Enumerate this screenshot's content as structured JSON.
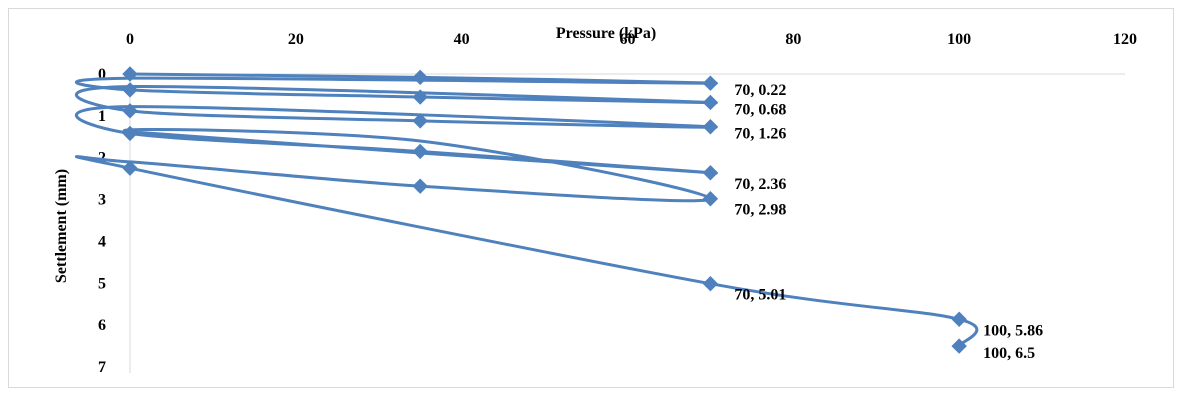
{
  "chart_data": {
    "type": "scatter",
    "xlabel": "Pressure (kPa)",
    "ylabel": "Settlement (mm)",
    "xlim": [
      0,
      120
    ],
    "ylim": [
      0,
      7
    ],
    "y_reversed": true,
    "x_axis_position": "top",
    "x_ticks": [
      "0",
      "20",
      "40",
      "60",
      "80",
      "100",
      "120"
    ],
    "y_ticks": [
      "0",
      "1",
      "2",
      "3",
      "4",
      "5",
      "6",
      "7"
    ],
    "grid": false,
    "legend": "none",
    "series_color": "#4f81bd",
    "points": [
      {
        "x": 0,
        "y": 0
      },
      {
        "x": 35,
        "y": 0.08
      },
      {
        "x": 70,
        "y": 0.22
      },
      {
        "x": 0,
        "y": 0.1
      },
      {
        "x": 0,
        "y": 0.38
      },
      {
        "x": 35,
        "y": 0.55
      },
      {
        "x": 70,
        "y": 0.68
      },
      {
        "x": 0,
        "y": 0.3
      },
      {
        "x": 0,
        "y": 0.88
      },
      {
        "x": 35,
        "y": 1.12
      },
      {
        "x": 70,
        "y": 1.26
      },
      {
        "x": 0,
        "y": 0.78
      },
      {
        "x": 0,
        "y": 1.42
      },
      {
        "x": 35,
        "y": 1.85
      },
      {
        "x": 70,
        "y": 2.36
      },
      {
        "x": 0,
        "y": 1.38
      },
      {
        "x": 35,
        "y": 1.6
      },
      {
        "x": 70,
        "y": 2.98
      },
      {
        "x": 35,
        "y": 2.68
      },
      {
        "x": 0,
        "y": 2.1
      },
      {
        "x": 0,
        "y": 2.25
      },
      {
        "x": 70,
        "y": 5.01
      },
      {
        "x": 100,
        "y": 5.86
      },
      {
        "x": 100,
        "y": 6.5
      }
    ],
    "marker_indices": [
      0,
      1,
      2,
      4,
      5,
      6,
      8,
      9,
      10,
      12,
      13,
      14,
      17,
      18,
      20,
      21,
      22,
      23
    ],
    "data_labels": [
      {
        "x": 70,
        "y": 0.22,
        "text": "70, 0.22"
      },
      {
        "x": 70,
        "y": 0.68,
        "text": "70, 0.68"
      },
      {
        "x": 70,
        "y": 1.26,
        "text": "70, 1.26"
      },
      {
        "x": 70,
        "y": 2.36,
        "text": "70, 2.36"
      },
      {
        "x": 70,
        "y": 2.98,
        "text": "70, 2.98"
      },
      {
        "x": 70,
        "y": 5.01,
        "text": "70, 5.01"
      },
      {
        "x": 100,
        "y": 5.86,
        "text": "100, 5.86"
      },
      {
        "x": 100,
        "y": 6.5,
        "text": "100, 6.5"
      }
    ]
  }
}
